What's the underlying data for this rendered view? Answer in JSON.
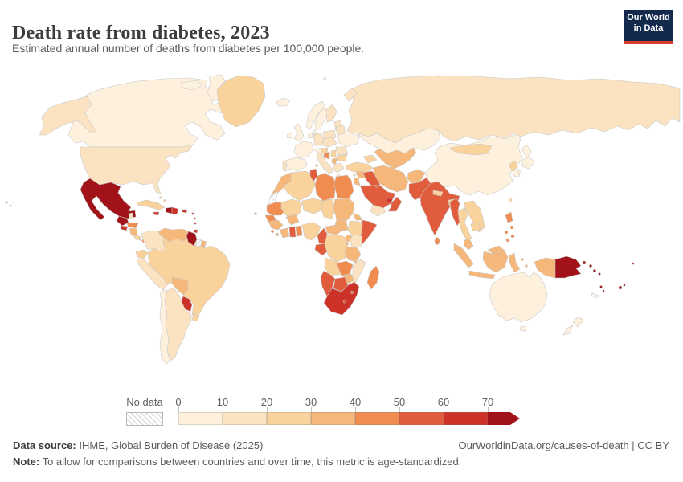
{
  "header": {
    "logo": {
      "line1": "Our World",
      "line2": "in Data",
      "bg": "#132a4d",
      "accent": "#dc3c2c"
    }
  },
  "legend": {
    "no_data_label": "No data",
    "tick_labels": [
      "0",
      "10",
      "20",
      "30",
      "40",
      "50",
      "60",
      "70"
    ]
  },
  "footer": {
    "source_label": "Data source:",
    "source_text": " IHME, Global Burden of Disease (2025)",
    "right_text": "OurWorldinData.org/causes-of-death | CC BY",
    "note_label": "Note:",
    "note_text": " To allow for comparisons between countries and over time, this metric is age-standardized."
  },
  "chart_data": {
    "type": "choropleth_map",
    "title": "Death rate from diabetes, 2023",
    "subtitle": "Estimated annual number of deaths from diabetes per 100,000 people.",
    "year": "2023",
    "unit": "deaths from diabetes per 100,000 people",
    "legend_position": "bottom",
    "bin_ranges": [
      "0-10",
      "10-20",
      "20-30",
      "30-40",
      "40-50",
      "50-60",
      "60-70",
      "70+"
    ],
    "bin_colors": [
      "#FDF1DE",
      "#FBE3C1",
      "#F9D29C",
      "#F6B77A",
      "#F18C51",
      "#E05C3D",
      "#CD3228",
      "#A11318"
    ],
    "no_data_style": "white with gray diagonal hatch",
    "country_bins": {
      "canada": 0,
      "arctic-islands": 0,
      "baffin": 0,
      "greenland": 2,
      "iceland": 0,
      "svalbard": 0,
      "usa": 1,
      "alaska": 1,
      "hawaii": 1,
      "mexico": 7,
      "guatemala": 7,
      "belize": 1,
      "el-salvador": 6,
      "honduras": 4,
      "nicaragua": 3,
      "costa-rica": 2,
      "panama": 4,
      "cuba": 2,
      "jamaica": 6,
      "haiti": 7,
      "dominican-republic": 6,
      "puerto-rico": 6,
      "bahamas": 2,
      "lesser-antilles": 6,
      "trinidad": 6,
      "venezuela": 3,
      "colombia": 1,
      "ecuador": 2,
      "peru": 1,
      "brazil": 2,
      "guyana": 7,
      "suriname": "nodata",
      "french-guiana": 3,
      "bolivia": 3,
      "paraguay": 6,
      "uruguay": 2,
      "argentina": 1,
      "chile": 0,
      "uk": 0,
      "ireland": 0,
      "norway": 0,
      "sweden": 0,
      "finland": 1,
      "denmark": 0,
      "baltics": 1,
      "poland": 1,
      "germany": 1,
      "benelux": 0,
      "france": 0,
      "spain": 0,
      "portugal": 1,
      "italy": 1,
      "sardinia": 1,
      "sicily": 1,
      "switzerland-austria": 0,
      "czech-slovakia-hungary": 1,
      "belarus": 1,
      "ukraine": 0,
      "romania": 1,
      "bulgaria": 2,
      "serbia": 2,
      "croatia": 2,
      "bosnia": 4,
      "albania-macedonia": 3,
      "greece": 1,
      "crete": 1,
      "cyprus": 1,
      "russia": 1,
      "novaya-zemlya": 1,
      "kazakhstan": 0,
      "central-asia": 3,
      "caucasus": 2,
      "turkey": 2,
      "syria": 3,
      "iraq": 5,
      "jordan-israel": 3,
      "saudi-arabia": 5,
      "yemen": 1,
      "oman": 5,
      "uae": 6,
      "kuwait": 5,
      "iran": 3,
      "afghanistan": 3,
      "pakistan": 5,
      "india": 5,
      "bangladesh": 2,
      "nepal": 2,
      "sri-lanka": 4,
      "china": 0,
      "mongolia": 2,
      "north-korea": 2,
      "south-korea": 0,
      "japan": 0,
      "japan-south": 0,
      "kyushu": 0,
      "taiwan": 1,
      "myanmar": 5,
      "thailand": 2,
      "laos-vietnam": 2,
      "cambodia": 2,
      "malaysia": 3,
      "malaysia-borneo": 3,
      "sumatra": 3,
      "java": 3,
      "borneo": 3,
      "sulawesi": 3,
      "moluccas": 3,
      "indonesian-papua": 3,
      "philippines": 4,
      "papua-new-guinea": 7,
      "new-britain": 7,
      "solomon-islands": 7,
      "vanuatu": 7,
      "fiji": 7,
      "new-caledonia": "nodata",
      "micronesia": 7,
      "australia": 0,
      "tasmania": 0,
      "new-zealand-north": 0,
      "new-zealand-south": 0,
      "morocco": 3,
      "western-sahara": "nodata",
      "algeria": 2,
      "tunisia": 5,
      "libya": 4,
      "egypt": 4,
      "mauritania": 4,
      "mali": 2,
      "niger": 2,
      "chad": 2,
      "sudan": 3,
      "south-sudan": 3,
      "eritrea": 3,
      "ethiopia": 2,
      "djibouti": 4,
      "somalia": 5,
      "senegal": 4,
      "guinea": 3,
      "sierra-leone": 4,
      "liberia": 3,
      "ivory-coast": 3,
      "ghana": 5,
      "togo-benin": 4,
      "burkina-faso": 3,
      "nigeria": 2,
      "cameroon": 5,
      "central-african-republic": 3,
      "gabon-congo": 5,
      "drc": 2,
      "uganda": 3,
      "kenya": 1,
      "rwanda-burundi": 3,
      "tanzania": 3,
      "angola": 2,
      "zambia": 4,
      "malawi": 3,
      "mozambique": 1,
      "zimbabwe": 3,
      "botswana": 5,
      "namibia": 5,
      "south-africa": 6,
      "lesotho": 5,
      "eswatini": 5,
      "madagascar": 4,
      "cape-verde": 3
    }
  }
}
